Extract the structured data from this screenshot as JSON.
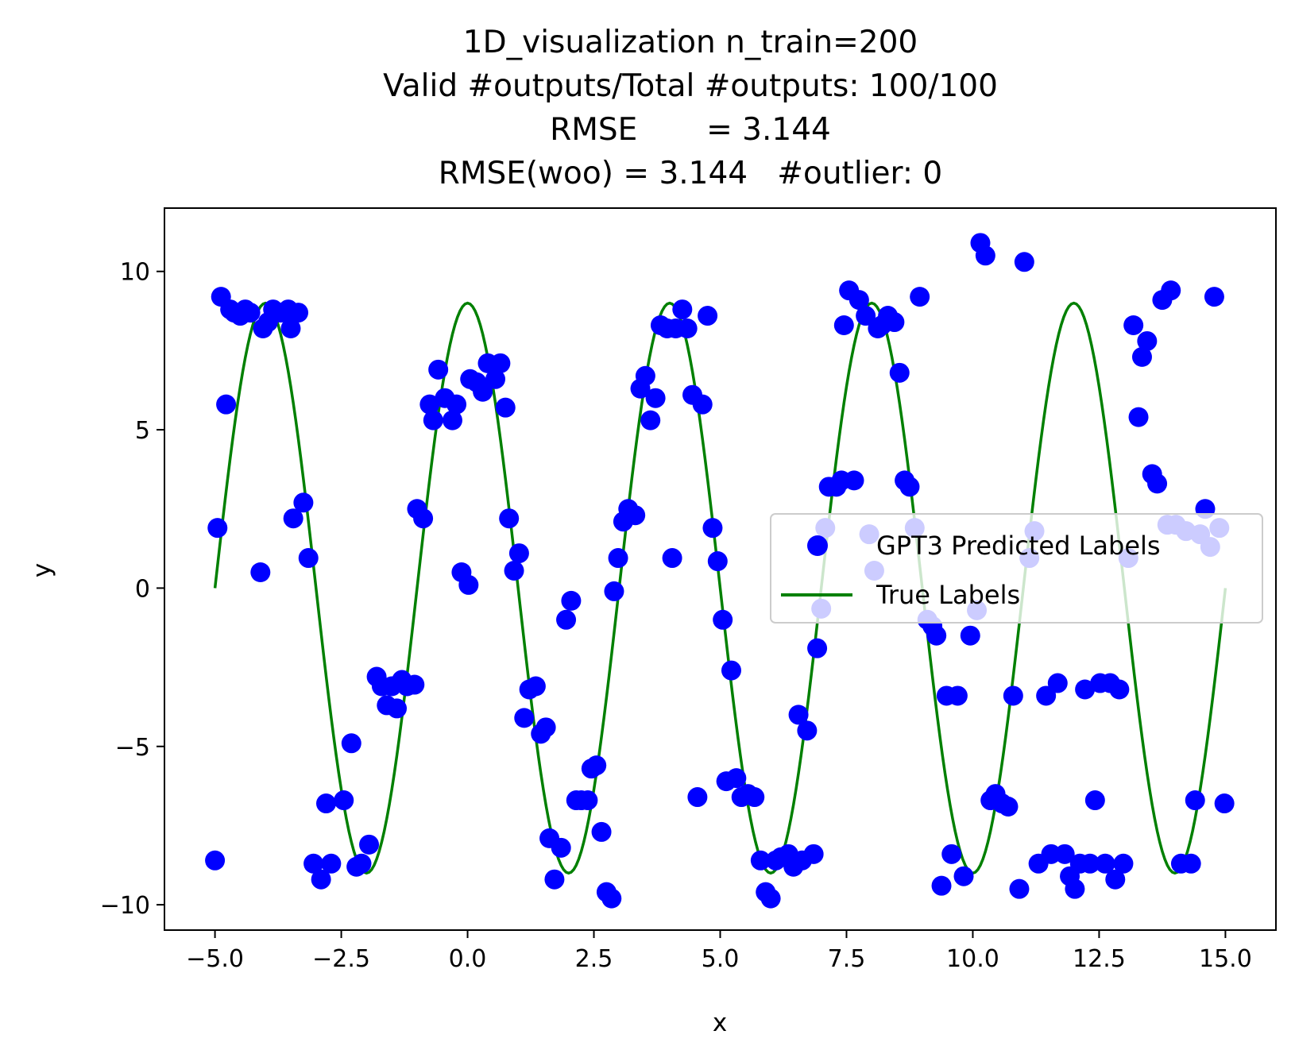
{
  "chart_data": {
    "type": "scatter",
    "title_lines": [
      "1D_visualization  n_train=200",
      "Valid #outputs/Total #outputs: 100/100",
      "RMSE       = 3.144",
      "RMSE(woo) = 3.144   #outlier: 0"
    ],
    "xlabel": "x",
    "ylabel": "y",
    "xlim": [
      -6,
      16
    ],
    "ylim": [
      -10.8,
      12
    ],
    "xticks": [
      -5.0,
      -2.5,
      0.0,
      2.5,
      5.0,
      7.5,
      10.0,
      12.5,
      15.0
    ],
    "xtick_labels": [
      "−5.0",
      "−2.5",
      "0.0",
      "2.5",
      "5.0",
      "7.5",
      "10.0",
      "12.5",
      "15.0"
    ],
    "yticks": [
      -10,
      -5,
      0,
      5,
      10
    ],
    "ytick_labels": [
      "−10",
      "−5",
      "0",
      "5",
      "10"
    ],
    "grid": false,
    "legend_position": "center-right",
    "series": [
      {
        "name": "GPT3 Predicted Labels",
        "kind": "scatter",
        "color": "#0000ff",
        "points": [
          [
            -5.0,
            -8.6
          ],
          [
            -4.95,
            1.9
          ],
          [
            -4.88,
            9.2
          ],
          [
            -4.78,
            5.8
          ],
          [
            -4.7,
            8.8
          ],
          [
            -4.62,
            8.7
          ],
          [
            -4.5,
            8.6
          ],
          [
            -4.4,
            8.8
          ],
          [
            -4.3,
            8.7
          ],
          [
            -4.1,
            0.5
          ],
          [
            -4.05,
            8.2
          ],
          [
            -3.95,
            8.4
          ],
          [
            -3.85,
            8.8
          ],
          [
            -3.7,
            8.7
          ],
          [
            -3.55,
            8.8
          ],
          [
            -3.5,
            8.2
          ],
          [
            -3.45,
            2.2
          ],
          [
            -3.35,
            8.7
          ],
          [
            -3.25,
            2.7
          ],
          [
            -3.15,
            0.95
          ],
          [
            -3.05,
            -8.7
          ],
          [
            -2.9,
            -9.2
          ],
          [
            -2.8,
            -6.8
          ],
          [
            -2.7,
            -8.7
          ],
          [
            -2.45,
            -6.7
          ],
          [
            -2.3,
            -4.9
          ],
          [
            -2.2,
            -8.8
          ],
          [
            -2.1,
            -8.7
          ],
          [
            -1.95,
            -8.1
          ],
          [
            -1.8,
            -2.8
          ],
          [
            -1.7,
            -3.1
          ],
          [
            -1.6,
            -3.7
          ],
          [
            -1.5,
            -3.1
          ],
          [
            -1.4,
            -3.8
          ],
          [
            -1.3,
            -2.9
          ],
          [
            -1.2,
            -3.1
          ],
          [
            -1.05,
            -3.05
          ],
          [
            -1.0,
            2.5
          ],
          [
            -0.88,
            2.2
          ],
          [
            -0.75,
            5.8
          ],
          [
            -0.68,
            5.3
          ],
          [
            -0.58,
            6.9
          ],
          [
            -0.45,
            6.0
          ],
          [
            -0.3,
            5.3
          ],
          [
            -0.22,
            5.8
          ],
          [
            -0.12,
            0.5
          ],
          [
            0.02,
            0.1
          ],
          [
            0.05,
            6.6
          ],
          [
            0.18,
            6.5
          ],
          [
            0.3,
            6.2
          ],
          [
            0.4,
            7.1
          ],
          [
            0.55,
            6.6
          ],
          [
            0.65,
            7.1
          ],
          [
            0.75,
            5.7
          ],
          [
            0.82,
            2.2
          ],
          [
            0.92,
            0.55
          ],
          [
            1.02,
            1.1
          ],
          [
            1.12,
            -4.1
          ],
          [
            1.22,
            -3.2
          ],
          [
            1.35,
            -3.1
          ],
          [
            1.45,
            -4.6
          ],
          [
            1.55,
            -4.4
          ],
          [
            1.62,
            -7.9
          ],
          [
            1.72,
            -9.2
          ],
          [
            1.85,
            -8.2
          ],
          [
            1.95,
            -1.0
          ],
          [
            2.05,
            -0.4
          ],
          [
            2.15,
            -6.7
          ],
          [
            2.25,
            -6.7
          ],
          [
            2.38,
            -6.7
          ],
          [
            2.45,
            -5.7
          ],
          [
            2.55,
            -5.6
          ],
          [
            2.65,
            -7.7
          ],
          [
            2.75,
            -9.6
          ],
          [
            2.85,
            -9.8
          ],
          [
            2.9,
            -0.1
          ],
          [
            2.98,
            0.95
          ],
          [
            3.08,
            2.1
          ],
          [
            3.18,
            2.5
          ],
          [
            3.32,
            2.3
          ],
          [
            3.42,
            6.3
          ],
          [
            3.52,
            6.7
          ],
          [
            3.62,
            5.3
          ],
          [
            3.72,
            6.0
          ],
          [
            3.82,
            8.3
          ],
          [
            3.95,
            8.2
          ],
          [
            4.05,
            0.95
          ],
          [
            4.12,
            8.2
          ],
          [
            4.25,
            8.8
          ],
          [
            4.35,
            8.2
          ],
          [
            4.45,
            6.1
          ],
          [
            4.55,
            -6.6
          ],
          [
            4.65,
            5.8
          ],
          [
            4.75,
            8.6
          ],
          [
            4.85,
            1.9
          ],
          [
            4.95,
            0.85
          ],
          [
            5.05,
            -1.0
          ],
          [
            5.12,
            -6.1
          ],
          [
            5.22,
            -2.6
          ],
          [
            5.32,
            -6.0
          ],
          [
            5.42,
            -6.6
          ],
          [
            5.55,
            -6.5
          ],
          [
            5.68,
            -6.6
          ],
          [
            5.8,
            -8.6
          ],
          [
            5.9,
            -9.6
          ],
          [
            6.0,
            -9.8
          ],
          [
            6.1,
            -8.6
          ],
          [
            6.2,
            -8.5
          ],
          [
            6.35,
            -8.4
          ],
          [
            6.45,
            -8.8
          ],
          [
            6.55,
            -4.0
          ],
          [
            6.62,
            -8.6
          ],
          [
            6.72,
            -4.5
          ],
          [
            6.85,
            -8.4
          ],
          [
            6.92,
            -1.9
          ],
          [
            7.0,
            -0.65
          ],
          [
            7.08,
            1.9
          ],
          [
            7.15,
            3.2
          ],
          [
            7.3,
            3.2
          ],
          [
            7.4,
            3.4
          ],
          [
            7.45,
            8.3
          ],
          [
            7.55,
            9.4
          ],
          [
            7.65,
            3.4
          ],
          [
            7.75,
            9.1
          ],
          [
            7.88,
            8.6
          ],
          [
            7.95,
            1.7
          ],
          [
            8.05,
            0.55
          ],
          [
            8.12,
            8.2
          ],
          [
            8.2,
            8.3
          ],
          [
            8.32,
            8.6
          ],
          [
            8.45,
            8.4
          ],
          [
            8.55,
            6.8
          ],
          [
            8.65,
            3.4
          ],
          [
            8.75,
            3.2
          ],
          [
            8.85,
            1.9
          ],
          [
            8.95,
            9.2
          ],
          [
            9.1,
            -1.0
          ],
          [
            9.2,
            -1.2
          ],
          [
            9.28,
            -1.5
          ],
          [
            9.38,
            -9.4
          ],
          [
            9.48,
            -3.4
          ],
          [
            9.58,
            -8.4
          ],
          [
            9.7,
            -3.4
          ],
          [
            9.82,
            -9.1
          ],
          [
            9.95,
            -1.5
          ],
          [
            10.08,
            -0.7
          ],
          [
            10.15,
            10.9
          ],
          [
            10.25,
            10.5
          ],
          [
            10.35,
            -6.7
          ],
          [
            10.45,
            -6.5
          ],
          [
            10.58,
            -6.8
          ],
          [
            10.7,
            -6.9
          ],
          [
            10.8,
            -3.4
          ],
          [
            10.92,
            -9.5
          ],
          [
            11.02,
            10.3
          ],
          [
            11.12,
            0.95
          ],
          [
            11.22,
            1.8
          ],
          [
            11.3,
            -8.7
          ],
          [
            11.45,
            -3.4
          ],
          [
            11.55,
            -8.4
          ],
          [
            11.68,
            -3.0
          ],
          [
            11.82,
            -8.4
          ],
          [
            11.92,
            -9.1
          ],
          [
            12.02,
            -9.5
          ],
          [
            12.12,
            -8.7
          ],
          [
            12.22,
            -3.2
          ],
          [
            12.32,
            -8.7
          ],
          [
            12.42,
            -6.7
          ],
          [
            12.52,
            -3.0
          ],
          [
            12.62,
            -8.7
          ],
          [
            12.72,
            -3.0
          ],
          [
            12.82,
            -9.2
          ],
          [
            12.9,
            -3.2
          ],
          [
            12.98,
            -8.7
          ],
          [
            13.08,
            0.95
          ],
          [
            13.18,
            8.3
          ],
          [
            13.28,
            5.4
          ],
          [
            13.35,
            7.3
          ],
          [
            13.45,
            7.8
          ],
          [
            13.55,
            3.6
          ],
          [
            13.65,
            3.3
          ],
          [
            13.75,
            9.1
          ],
          [
            13.85,
            2.0
          ],
          [
            13.92,
            9.4
          ],
          [
            14.02,
            2.0
          ],
          [
            14.12,
            -8.7
          ],
          [
            14.22,
            1.8
          ],
          [
            14.32,
            -8.7
          ],
          [
            14.4,
            -6.7
          ],
          [
            14.5,
            1.7
          ],
          [
            14.6,
            2.5
          ],
          [
            14.7,
            1.3
          ],
          [
            14.78,
            9.2
          ],
          [
            14.88,
            1.9
          ],
          [
            14.98,
            -6.8
          ]
        ]
      },
      {
        "name": "True Labels",
        "kind": "line",
        "color": "#008000",
        "function": "9*sin(pi*x/4 - pi/4)... approximated as 9*sin(2*pi*(x+5)/4)",
        "x_range": [
          -5,
          15
        ],
        "amplitude": 9,
        "period": 4,
        "phase_offset": 5
      }
    ]
  }
}
